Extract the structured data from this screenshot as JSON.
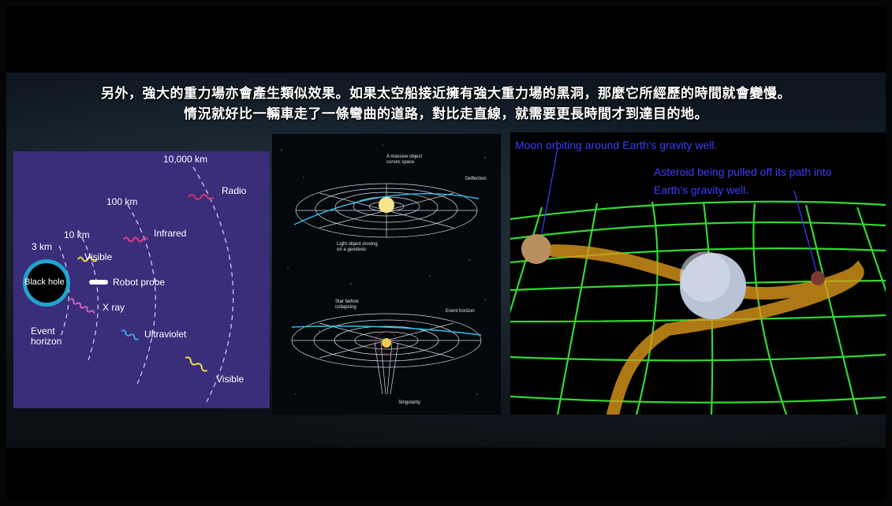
{
  "headline": {
    "line1": "另外，強大的重力場亦會產生類似效果。如果太空船接近擁有強大重力場的黑洞，那麼它所經歷的時間就會變慢。",
    "line2": "情況就好比一輛車走了一條彎曲的道路，對比走直線，就需要更長時間才到達目的地。"
  },
  "black_hole_diagram": {
    "distances": [
      "10,000 km",
      "100 km",
      "10 km",
      "3 km"
    ],
    "center_label": "Black hole",
    "event_horizon": "Event\nhorizon",
    "waves": [
      "Radio",
      "Infrared",
      "Visible",
      "Robot probe",
      "X ray",
      "Ultraviolet",
      "Visible"
    ],
    "colors": {
      "background": "#3a2d7a",
      "radio": "#e0306a",
      "infrared": "#e03a8a",
      "visible": "#e8e040",
      "xray": "#d060c0",
      "ultraviolet": "#40a0e0"
    }
  },
  "curvature_diagram": {
    "top": {
      "massive": "A massive object\ncurves space",
      "deflection": "Deflection",
      "light": "Light object moving\non a geodesic"
    },
    "bottom": {
      "star": "Star before\ncollapsing",
      "horizon": "Event horizon",
      "singularity": "Singularity"
    }
  },
  "gravity_well": {
    "moon_caption": "Moon orbiting around Earth's gravity well.",
    "asteroid_caption_1": "Asteroid being pulled off its path into",
    "asteroid_caption_2": "Earth's gravity well.",
    "colors": {
      "grid": "#3cff3c",
      "path": "#d9961a",
      "caption": "#3d3dff"
    }
  }
}
